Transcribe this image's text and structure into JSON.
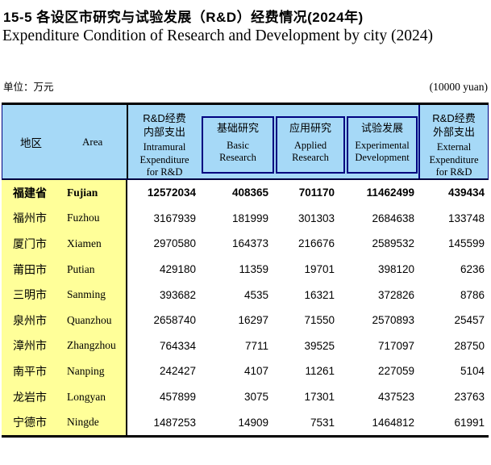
{
  "title": {
    "zh": "15-5  各设区市研究与试验发展（R&D）经费情况(2024年)",
    "en": "Expenditure Condition of Research and Development by city (2024)"
  },
  "unit": {
    "zh": "单位：万元",
    "en": "(10000 yuan)"
  },
  "colors": {
    "header_bg": "#A6D9F7",
    "area_column_bg": "#FFFF99",
    "inner_border": "#000080",
    "outer_border": "#000000"
  },
  "table": {
    "area_header": {
      "zh": "地区",
      "en": "Area"
    },
    "columns": [
      {
        "zh": "R&D经费\n内部支出",
        "en": "Intramural\nExpenditure\nfor R&D"
      },
      {
        "zh": "基础研究",
        "en": "Basic\nResearch"
      },
      {
        "zh": "应用研究",
        "en": "Applied\nResearch"
      },
      {
        "zh": "试验发展",
        "en": "Experimental\nDevelopment"
      },
      {
        "zh": "R&D经费\n外部支出",
        "en": "External\nExpenditure\nfor R&D"
      }
    ],
    "rows": [
      {
        "zh": "福建省",
        "en": "Fujian",
        "bold": true,
        "values": [
          "12572034",
          "408365",
          "701170",
          "11462499",
          "439434"
        ]
      },
      {
        "zh": "福州市",
        "en": "Fuzhou",
        "bold": false,
        "values": [
          "3167939",
          "181999",
          "301303",
          "2684638",
          "133748"
        ]
      },
      {
        "zh": "厦门市",
        "en": "Xiamen",
        "bold": false,
        "values": [
          "2970580",
          "164373",
          "216676",
          "2589532",
          "145599"
        ]
      },
      {
        "zh": "莆田市",
        "en": "Putian",
        "bold": false,
        "values": [
          "429180",
          "11359",
          "19701",
          "398120",
          "6236"
        ]
      },
      {
        "zh": "三明市",
        "en": "Sanming",
        "bold": false,
        "values": [
          "393682",
          "4535",
          "16321",
          "372826",
          "8786"
        ]
      },
      {
        "zh": "泉州市",
        "en": "Quanzhou",
        "bold": false,
        "values": [
          "2658740",
          "16297",
          "71550",
          "2570893",
          "25457"
        ]
      },
      {
        "zh": "漳州市",
        "en": "Zhangzhou",
        "bold": false,
        "values": [
          "764334",
          "7711",
          "39525",
          "717097",
          "28750"
        ]
      },
      {
        "zh": "南平市",
        "en": "Nanping",
        "bold": false,
        "values": [
          "242427",
          "4107",
          "11261",
          "227059",
          "5104"
        ]
      },
      {
        "zh": "龙岩市",
        "en": "Longyan",
        "bold": false,
        "values": [
          "457899",
          "3075",
          "17301",
          "437523",
          "23763"
        ]
      },
      {
        "zh": "宁德市",
        "en": "Ningde",
        "bold": false,
        "values": [
          "1487253",
          "14909",
          "7531",
          "1464812",
          "61991"
        ]
      }
    ]
  }
}
